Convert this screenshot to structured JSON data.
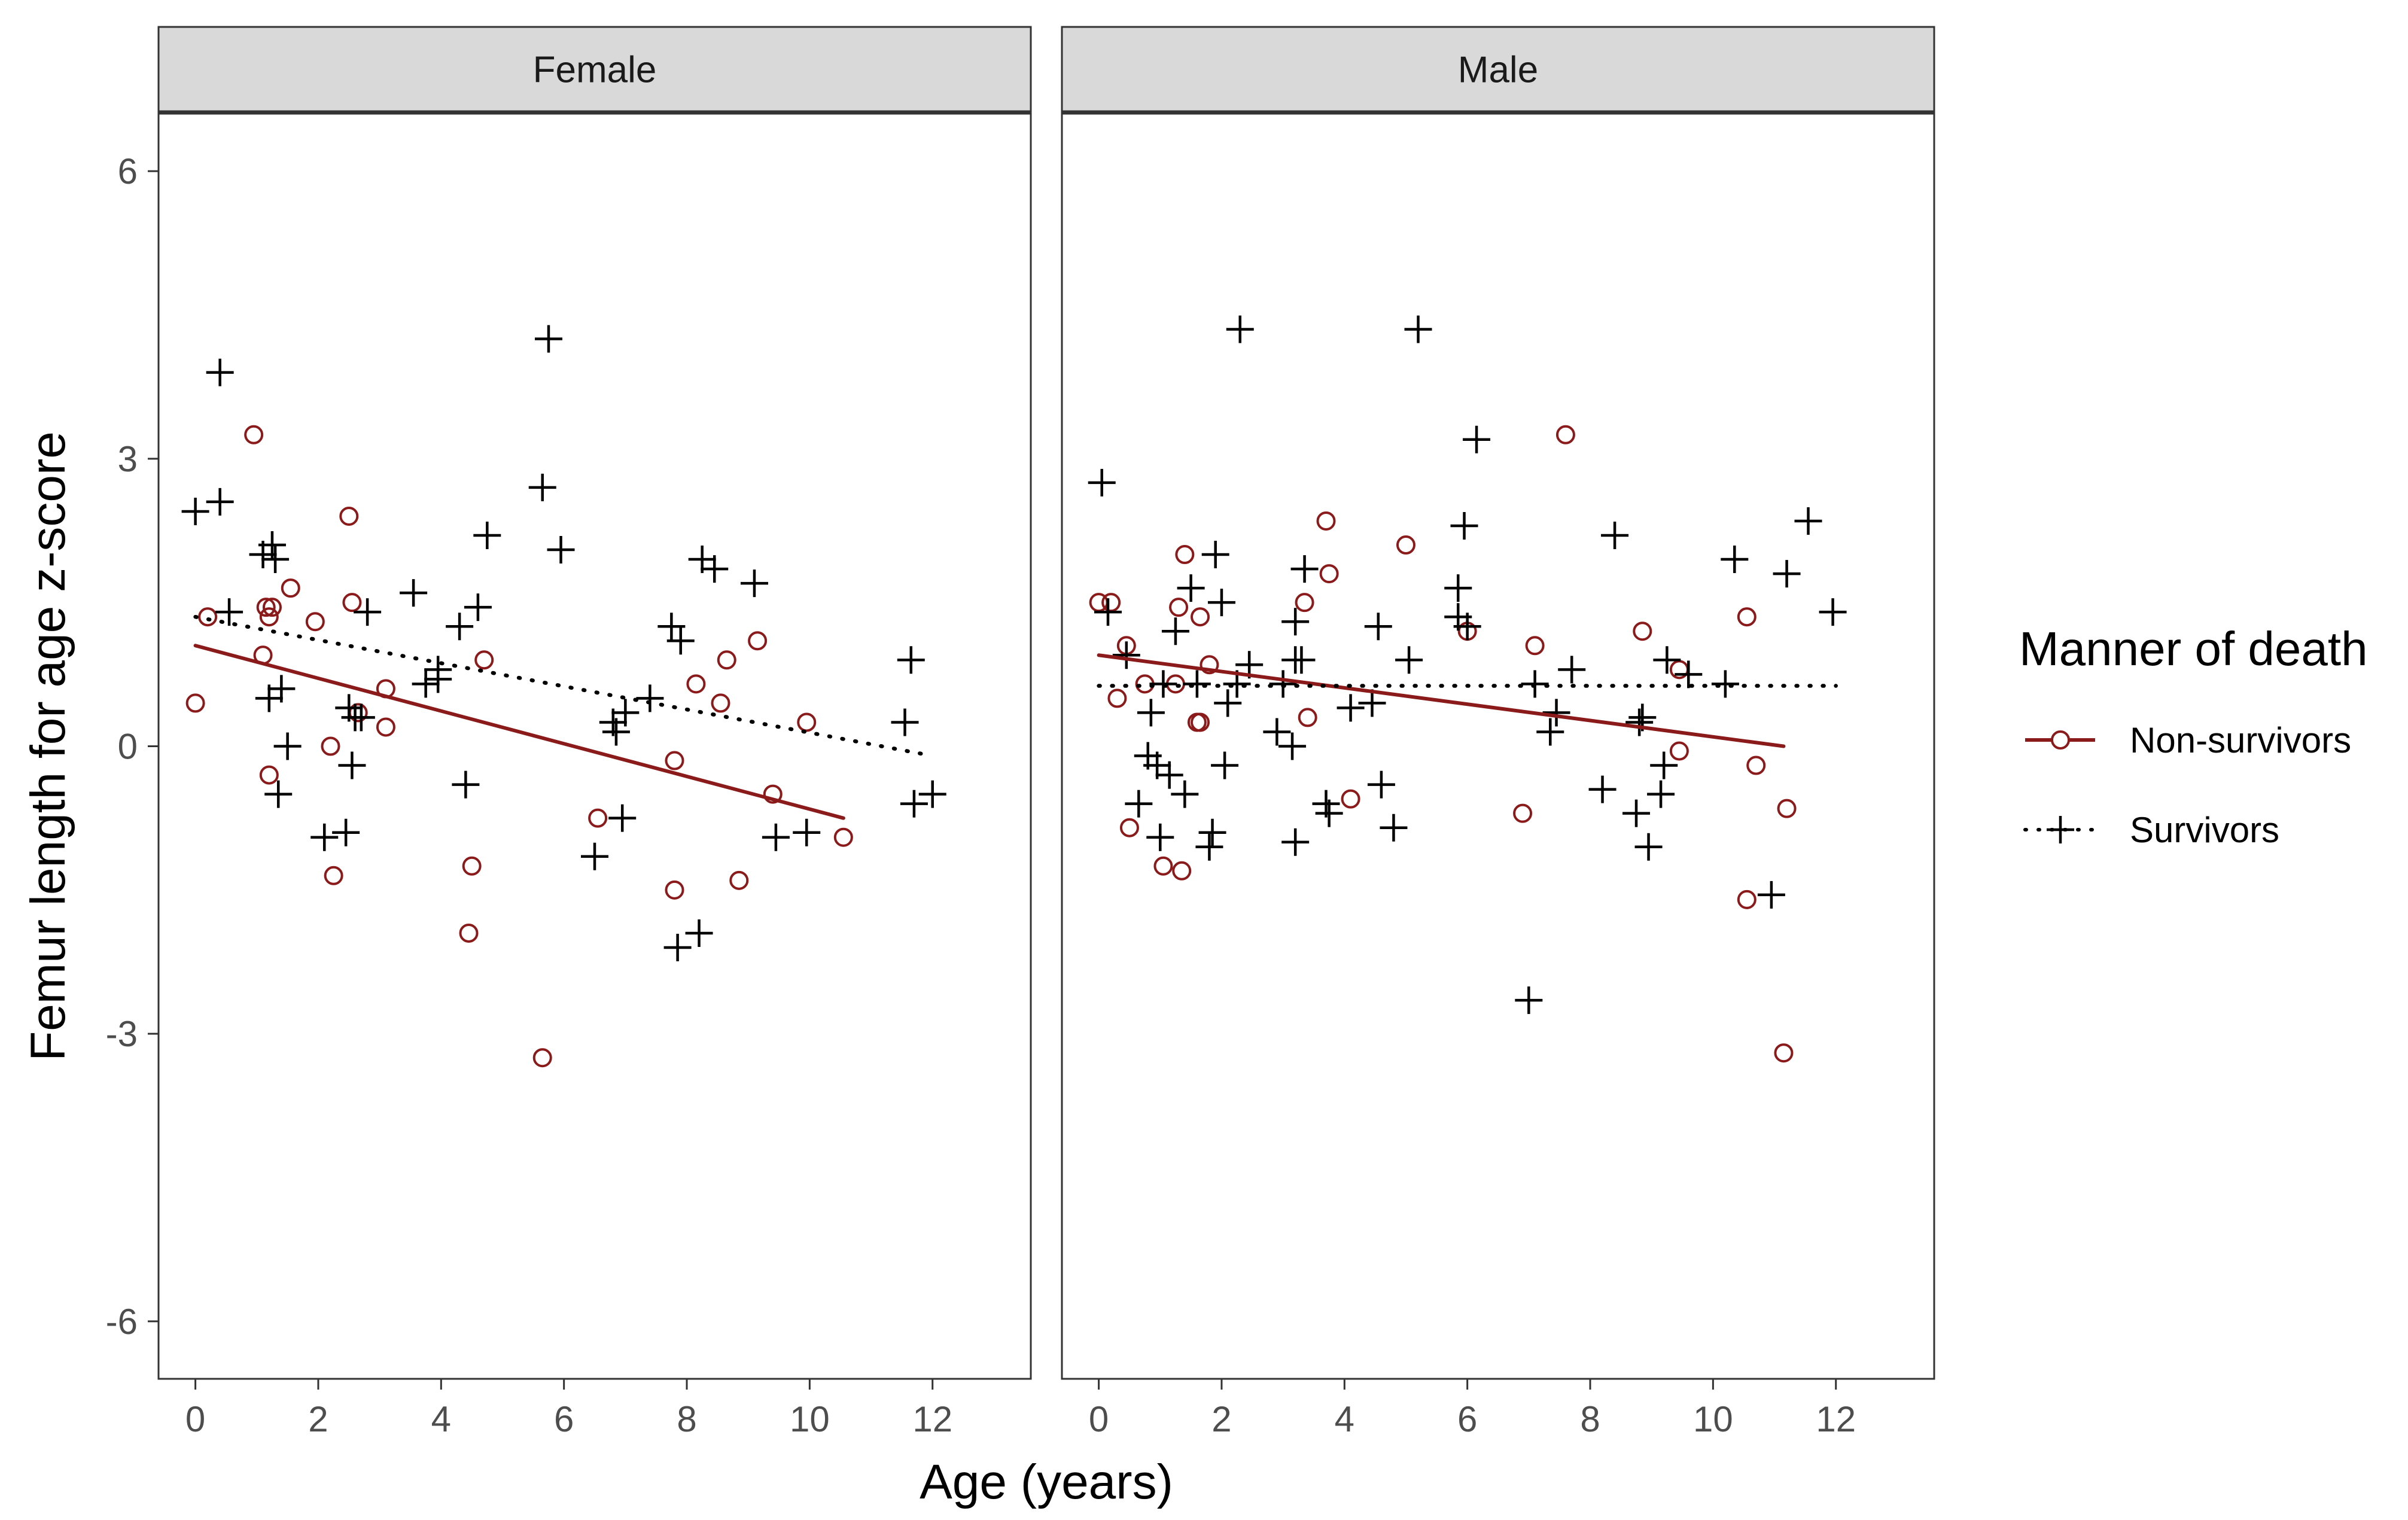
{
  "chart_data": {
    "type": "scatter",
    "xlabel": "Age (years)",
    "ylabel": "Femur length for age z-score",
    "xlim": [
      -0.6,
      13.6
    ],
    "ylim": [
      -6.6,
      6.6
    ],
    "xticks": [
      0,
      2,
      4,
      6,
      8,
      10,
      12
    ],
    "yticks": [
      -6,
      -3,
      0,
      3,
      6
    ],
    "ytick_labels": [
      "-6",
      "-3",
      "0",
      "3",
      "6"
    ],
    "grid": false,
    "colors": {
      "non_survivors": "#8b1a1a",
      "survivors": "#000000",
      "strip_fill": "#d9d9d9"
    },
    "legend": {
      "title": "Manner of death",
      "position": "right",
      "items": [
        {
          "label": "Non-survivors",
          "marker": "circle",
          "line": "solid",
          "color": "#8b1a1a"
        },
        {
          "label": "Survivors",
          "marker": "plus",
          "line": "dotted",
          "color": "#000000"
        }
      ]
    },
    "panels": [
      {
        "name": "Female",
        "series": [
          {
            "name": "Non-survivors",
            "marker": "circle",
            "points": [
              [
                0.0,
                0.45
              ],
              [
                0.2,
                1.35
              ],
              [
                0.95,
                3.25
              ],
              [
                1.1,
                0.95
              ],
              [
                1.15,
                1.45
              ],
              [
                1.2,
                1.35
              ],
              [
                1.25,
                1.45
              ],
              [
                1.2,
                -0.3
              ],
              [
                1.55,
                1.65
              ],
              [
                1.95,
                1.3
              ],
              [
                2.2,
                0.0
              ],
              [
                2.25,
                -1.35
              ],
              [
                2.5,
                2.4
              ],
              [
                2.55,
                1.5
              ],
              [
                2.65,
                0.35
              ],
              [
                3.1,
                0.6
              ],
              [
                3.1,
                0.2
              ],
              [
                4.45,
                -1.95
              ],
              [
                4.5,
                -1.25
              ],
              [
                4.7,
                0.9
              ],
              [
                5.65,
                -3.25
              ],
              [
                6.55,
                -0.75
              ],
              [
                7.8,
                -0.15
              ],
              [
                7.8,
                -1.5
              ],
              [
                8.15,
                0.65
              ],
              [
                8.55,
                0.45
              ],
              [
                8.65,
                0.9
              ],
              [
                8.85,
                -1.4
              ],
              [
                9.15,
                1.1
              ],
              [
                9.4,
                -0.5
              ],
              [
                9.95,
                0.25
              ],
              [
                10.55,
                -0.95
              ]
            ],
            "trend": [
              [
                0.0,
                1.05
              ],
              [
                10.55,
                -0.75
              ]
            ]
          },
          {
            "name": "Survivors",
            "marker": "plus",
            "points": [
              [
                0.0,
                2.45
              ],
              [
                0.4,
                3.9
              ],
              [
                0.4,
                2.55
              ],
              [
                0.55,
                1.4
              ],
              [
                1.1,
                2.0
              ],
              [
                1.25,
                2.1
              ],
              [
                1.3,
                1.95
              ],
              [
                1.2,
                0.5
              ],
              [
                1.35,
                -0.5
              ],
              [
                1.4,
                0.6
              ],
              [
                1.5,
                0.0
              ],
              [
                2.1,
                -0.95
              ],
              [
                2.45,
                -0.9
              ],
              [
                2.5,
                0.4
              ],
              [
                2.6,
                0.3
              ],
              [
                2.55,
                -0.2
              ],
              [
                2.7,
                0.3
              ],
              [
                2.8,
                1.4
              ],
              [
                3.55,
                1.6
              ],
              [
                3.75,
                0.65
              ],
              [
                3.95,
                0.7
              ],
              [
                3.95,
                0.8
              ],
              [
                4.3,
                1.25
              ],
              [
                4.4,
                -0.4
              ],
              [
                4.6,
                1.45
              ],
              [
                4.75,
                2.2
              ],
              [
                5.65,
                2.7
              ],
              [
                5.75,
                4.25
              ],
              [
                5.95,
                2.05
              ],
              [
                6.5,
                -1.15
              ],
              [
                6.8,
                0.25
              ],
              [
                6.85,
                0.15
              ],
              [
                7.0,
                0.35
              ],
              [
                6.95,
                -0.75
              ],
              [
                7.4,
                0.5
              ],
              [
                7.75,
                1.25
              ],
              [
                7.9,
                1.1
              ],
              [
                7.85,
                -2.1
              ],
              [
                8.2,
                -1.95
              ],
              [
                8.25,
                1.95
              ],
              [
                8.45,
                1.85
              ],
              [
                9.1,
                1.7
              ],
              [
                9.45,
                -0.95
              ],
              [
                9.95,
                -0.9
              ],
              [
                11.55,
                0.25
              ],
              [
                11.65,
                0.9
              ],
              [
                11.7,
                -0.6
              ],
              [
                12.0,
                -0.5
              ]
            ],
            "trend": [
              [
                0.0,
                1.35
              ],
              [
                12.0,
                -0.1
              ]
            ]
          }
        ]
      },
      {
        "name": "Male",
        "series": [
          {
            "name": "Non-survivors",
            "marker": "circle",
            "points": [
              [
                0.0,
                1.5
              ],
              [
                0.2,
                1.5
              ],
              [
                0.3,
                0.5
              ],
              [
                0.45,
                1.05
              ],
              [
                0.5,
                -0.85
              ],
              [
                0.75,
                0.65
              ],
              [
                1.05,
                -1.25
              ],
              [
                1.25,
                0.65
              ],
              [
                1.3,
                1.45
              ],
              [
                1.35,
                -1.3
              ],
              [
                1.4,
                2.0
              ],
              [
                1.6,
                0.25
              ],
              [
                1.65,
                0.25
              ],
              [
                1.65,
                1.35
              ],
              [
                1.8,
                0.85
              ],
              [
                3.35,
                1.5
              ],
              [
                3.4,
                0.3
              ],
              [
                3.7,
                2.35
              ],
              [
                3.75,
                1.8
              ],
              [
                4.1,
                -0.55
              ],
              [
                5.0,
                2.1
              ],
              [
                6.0,
                1.2
              ],
              [
                6.9,
                -0.7
              ],
              [
                7.1,
                1.05
              ],
              [
                7.6,
                3.25
              ],
              [
                8.85,
                1.2
              ],
              [
                9.45,
                -0.05
              ],
              [
                9.45,
                0.8
              ],
              [
                10.55,
                1.35
              ],
              [
                10.55,
                -1.6
              ],
              [
                10.7,
                -0.2
              ],
              [
                11.15,
                -3.2
              ],
              [
                11.2,
                -0.65
              ]
            ],
            "trend": [
              [
                0.0,
                0.95
              ],
              [
                11.15,
                0.0
              ]
            ]
          },
          {
            "name": "Survivors",
            "marker": "plus",
            "points": [
              [
                0.05,
                2.75
              ],
              [
                0.15,
                1.4
              ],
              [
                0.45,
                0.95
              ],
              [
                0.65,
                -0.6
              ],
              [
                0.8,
                -0.1
              ],
              [
                0.85,
                0.35
              ],
              [
                0.95,
                -0.2
              ],
              [
                1.0,
                -0.95
              ],
              [
                1.05,
                0.65
              ],
              [
                1.15,
                -0.3
              ],
              [
                1.25,
                1.2
              ],
              [
                1.4,
                -0.5
              ],
              [
                1.5,
                1.65
              ],
              [
                1.6,
                0.65
              ],
              [
                1.8,
                -1.05
              ],
              [
                1.85,
                -0.9
              ],
              [
                1.9,
                2.0
              ],
              [
                2.0,
                1.5
              ],
              [
                2.05,
                -0.2
              ],
              [
                2.1,
                0.45
              ],
              [
                2.25,
                0.65
              ],
              [
                2.3,
                4.35
              ],
              [
                2.45,
                0.85
              ],
              [
                2.9,
                0.15
              ],
              [
                3.0,
                0.65
              ],
              [
                3.15,
                0.0
              ],
              [
                3.2,
                1.3
              ],
              [
                3.2,
                0.9
              ],
              [
                3.2,
                -1.0
              ],
              [
                3.3,
                0.9
              ],
              [
                3.35,
                1.85
              ],
              [
                3.7,
                -0.6
              ],
              [
                3.75,
                -0.7
              ],
              [
                4.1,
                0.4
              ],
              [
                4.45,
                0.45
              ],
              [
                4.55,
                1.25
              ],
              [
                4.6,
                -0.4
              ],
              [
                4.8,
                -0.85
              ],
              [
                5.05,
                0.9
              ],
              [
                5.2,
                4.35
              ],
              [
                5.85,
                1.35
              ],
              [
                5.85,
                1.65
              ],
              [
                5.95,
                2.3
              ],
              [
                6.0,
                1.25
              ],
              [
                6.15,
                3.2
              ],
              [
                7.0,
                -2.65
              ],
              [
                7.1,
                0.65
              ],
              [
                7.35,
                0.15
              ],
              [
                7.45,
                0.35
              ],
              [
                7.7,
                0.8
              ],
              [
                8.2,
                -0.45
              ],
              [
                8.4,
                2.2
              ],
              [
                8.75,
                -0.7
              ],
              [
                8.8,
                0.25
              ],
              [
                8.85,
                0.3
              ],
              [
                8.95,
                -1.05
              ],
              [
                9.15,
                -0.5
              ],
              [
                9.2,
                -0.2
              ],
              [
                9.25,
                0.9
              ],
              [
                9.6,
                0.75
              ],
              [
                10.2,
                0.65
              ],
              [
                10.35,
                1.95
              ],
              [
                10.95,
                -1.55
              ],
              [
                11.2,
                1.8
              ],
              [
                11.55,
                2.35
              ],
              [
                11.95,
                1.4
              ]
            ],
            "trend": [
              [
                0.0,
                0.63
              ],
              [
                12.0,
                0.63
              ]
            ]
          }
        ]
      }
    ]
  }
}
